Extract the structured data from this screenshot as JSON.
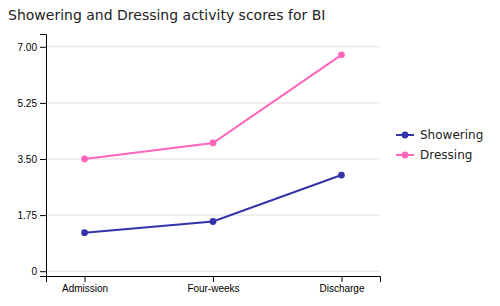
{
  "chart_data": {
    "type": "line",
    "title": "Showering and Dressing activity scores for BI",
    "categories": [
      "Admission",
      "Four-weeks",
      "Discharge"
    ],
    "series": [
      {
        "name": "Showering",
        "color": "#3333aa",
        "marker": "circle",
        "values": [
          1.2,
          1.55,
          3.0
        ]
      },
      {
        "name": "Dressing",
        "color": "#ff66bb",
        "marker": "circle",
        "values": [
          3.5,
          4.0,
          6.75
        ]
      }
    ],
    "ylim": [
      -0.15,
      7.4
    ],
    "yticks": [
      0,
      1.75,
      {
        "value": 3.5,
        "label": "3.50"
      },
      5.25,
      {
        "value": 7,
        "label": "7.00"
      }
    ],
    "grid": true,
    "legend": "right"
  }
}
